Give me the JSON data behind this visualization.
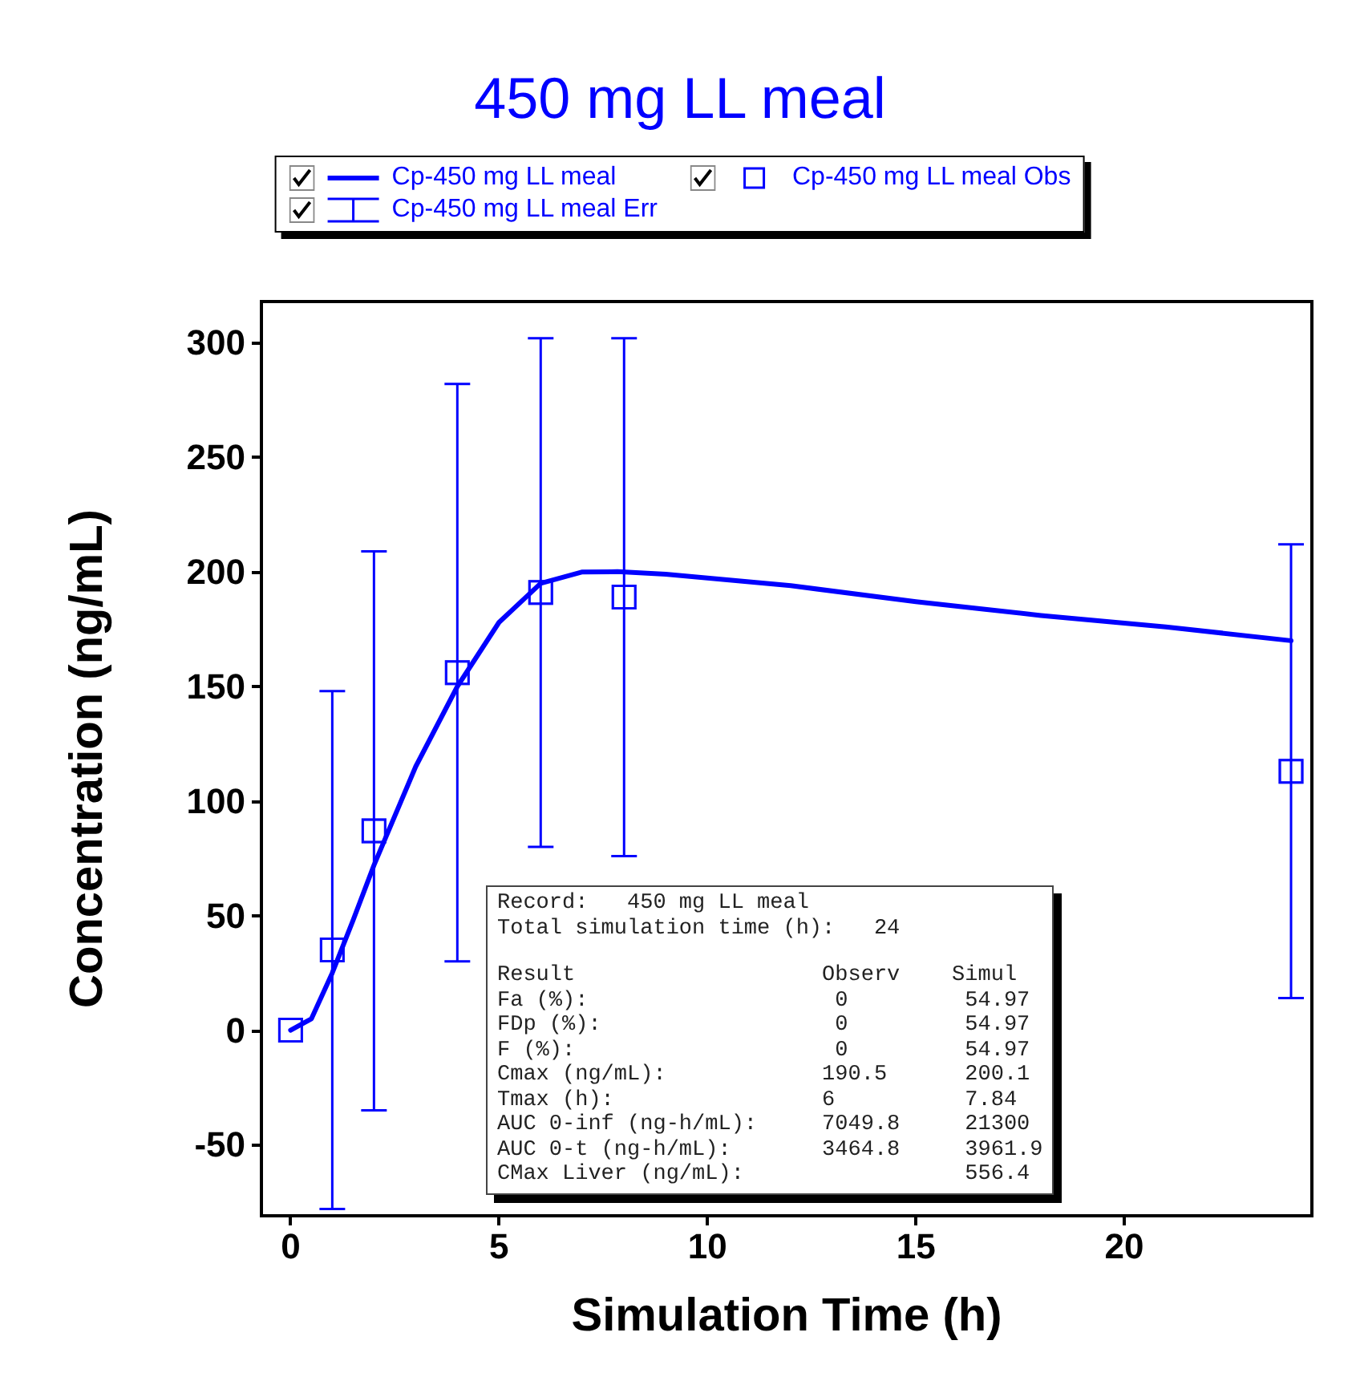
{
  "chart_data": {
    "type": "line",
    "title": "450 mg LL meal",
    "xlabel": "Simulation Time (h)",
    "ylabel": "Concentration (ng/mL)",
    "xlim": [
      -0.7,
      24.5
    ],
    "xticks": [
      0,
      5,
      10,
      15,
      20
    ],
    "ylim": [
      -81,
      318
    ],
    "yticks": [
      -50,
      0,
      50,
      100,
      150,
      200,
      250,
      300
    ],
    "legend": "top",
    "series": [
      {
        "name": "Cp-450 mg LL meal",
        "type": "line",
        "color": "#0000ff",
        "marker": "none",
        "line_style": "solid",
        "x": [
          0,
          0.5,
          1,
          1.5,
          2,
          3,
          4,
          5,
          6,
          7,
          7.84,
          9,
          12,
          15,
          18,
          21,
          24
        ],
        "values": [
          0,
          5,
          25,
          48,
          72,
          115,
          150,
          178,
          195,
          200,
          200.1,
          199,
          194,
          187,
          181,
          176,
          170
        ]
      },
      {
        "name": "Cp-450 mg LL meal Obs",
        "type": "scatter",
        "color": "#0000ff",
        "marker": "square",
        "x": [
          0,
          1,
          2,
          4,
          6,
          8,
          24
        ],
        "values": [
          0,
          35,
          87,
          156,
          191,
          189,
          113
        ]
      },
      {
        "name": "Cp-450 mg LL meal Err",
        "type": "scatter",
        "color": "#0000ff",
        "marker": "square",
        "x": [
          0,
          1,
          2,
          4,
          6,
          8,
          24
        ],
        "values": [
          0,
          35,
          87,
          156,
          191,
          189,
          113
        ],
        "errors": [
          null,
          113,
          122,
          126,
          111,
          113,
          99
        ]
      }
    ],
    "annotations": [
      "Record:   450 mg LL meal",
      "Total simulation time (h):   24",
      "Result                   Observ    Simul",
      "Fa (%):                   0         54.97",
      "FDp (%):                  0         54.97",
      "F (%):                    0         54.97",
      "Cmax (ng/mL):            190.5      200.1",
      "Tmax (h):                6          7.84",
      "AUC 0-inf (ng-h/mL):     7049.8     21300",
      "AUC 0-t (ng-h/mL):       3464.8     3961.9",
      "CMax Liver (ng/mL):                 556.4"
    ]
  }
}
